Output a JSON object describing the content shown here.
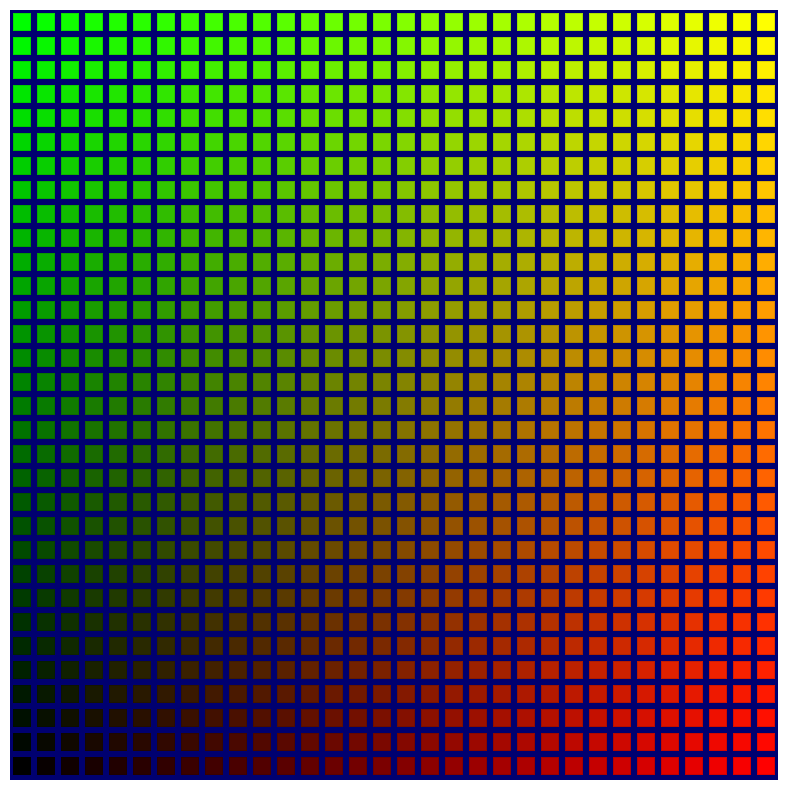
{
  "grid": {
    "rows": 32,
    "columns": 32,
    "background_color": "#000070",
    "colors": {
      "top_left": "#00ff00",
      "top_right": "#ffff00",
      "bottom_left": "#000000",
      "bottom_right": "#ff0000"
    },
    "red_increases": "left-to-right",
    "green_increases": "bottom-to-top",
    "blue": 0
  }
}
